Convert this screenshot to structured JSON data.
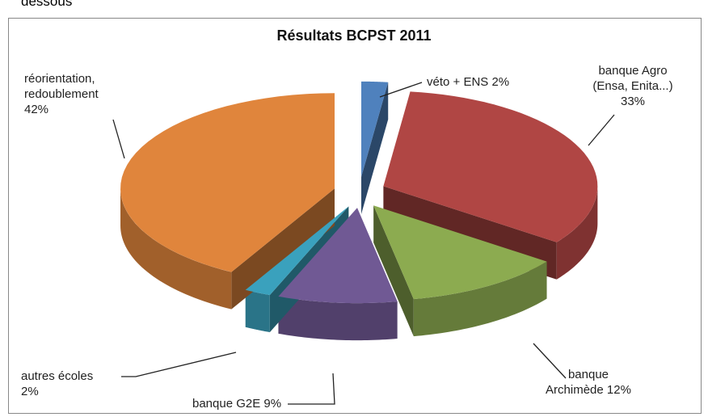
{
  "caption_fragment": "dessous",
  "chart_data": {
    "type": "pie",
    "title": "Résultats BCPST 2011",
    "categories": [
      "véto + ENS",
      "banque Agro (Ensa, Enita...)",
      "banque Archimède",
      "banque G2E",
      "autres écoles",
      "réorientation, redoublement"
    ],
    "values": [
      2,
      33,
      12,
      9,
      2,
      42
    ],
    "value_labels": [
      "2%",
      "33%",
      "12%",
      "9%",
      "2%",
      "42%"
    ],
    "colors": [
      "#4f81bd",
      "#b04644",
      "#8cab50",
      "#705994",
      "#3aa1bd",
      "#e0853c"
    ]
  }
}
